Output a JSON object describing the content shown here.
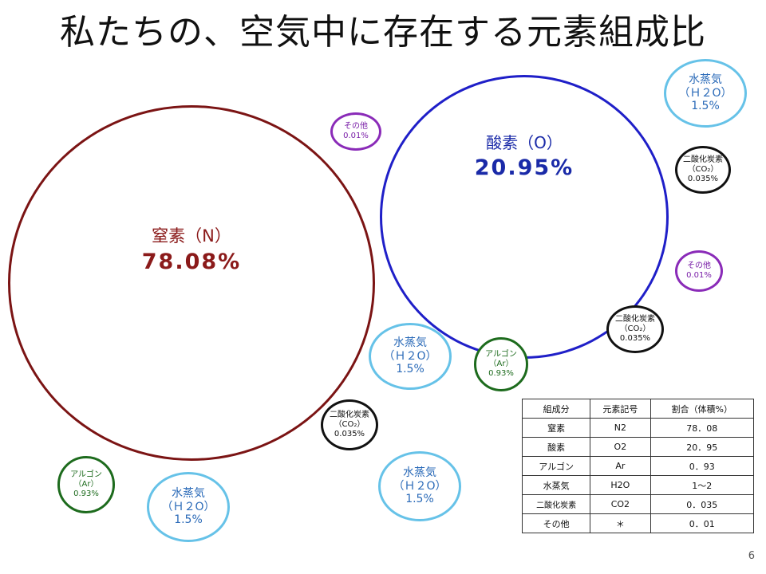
{
  "title": "私たちの、空気中に存在する元素組成比",
  "nitrogen": {
    "name": "窒素（N）",
    "value": "78.08%",
    "color": "#8b1a1a"
  },
  "oxygen": {
    "name": "酸素（O）",
    "value": "20.95%",
    "color": "#1a2aa8"
  },
  "small": {
    "h2o": {
      "name": "水蒸気",
      "formula": "（Ｈ２O）",
      "value": "1.5%"
    },
    "co2": {
      "name": "二酸化炭素",
      "formula": "（CO₂）",
      "value": "0.035%"
    },
    "ar": {
      "name": "アルゴン",
      "formula": "（Ar）",
      "value": "0.93%"
    },
    "other": {
      "name": "その他",
      "value": "0.01%"
    }
  },
  "table": {
    "headers": [
      "組成分",
      "元素記号",
      "割合（体積%）"
    ],
    "rows": [
      [
        "窒素",
        "N2",
        "78．08"
      ],
      [
        "酸素",
        "O2",
        "20．95"
      ],
      [
        "アルゴン",
        "Ar",
        "0．93"
      ],
      [
        "水蒸気",
        "H2O",
        "1～2"
      ],
      [
        "二酸化炭素",
        "CO2",
        "0．035"
      ],
      [
        "その他",
        "＊",
        "0．01"
      ]
    ]
  },
  "page_number": "6"
}
